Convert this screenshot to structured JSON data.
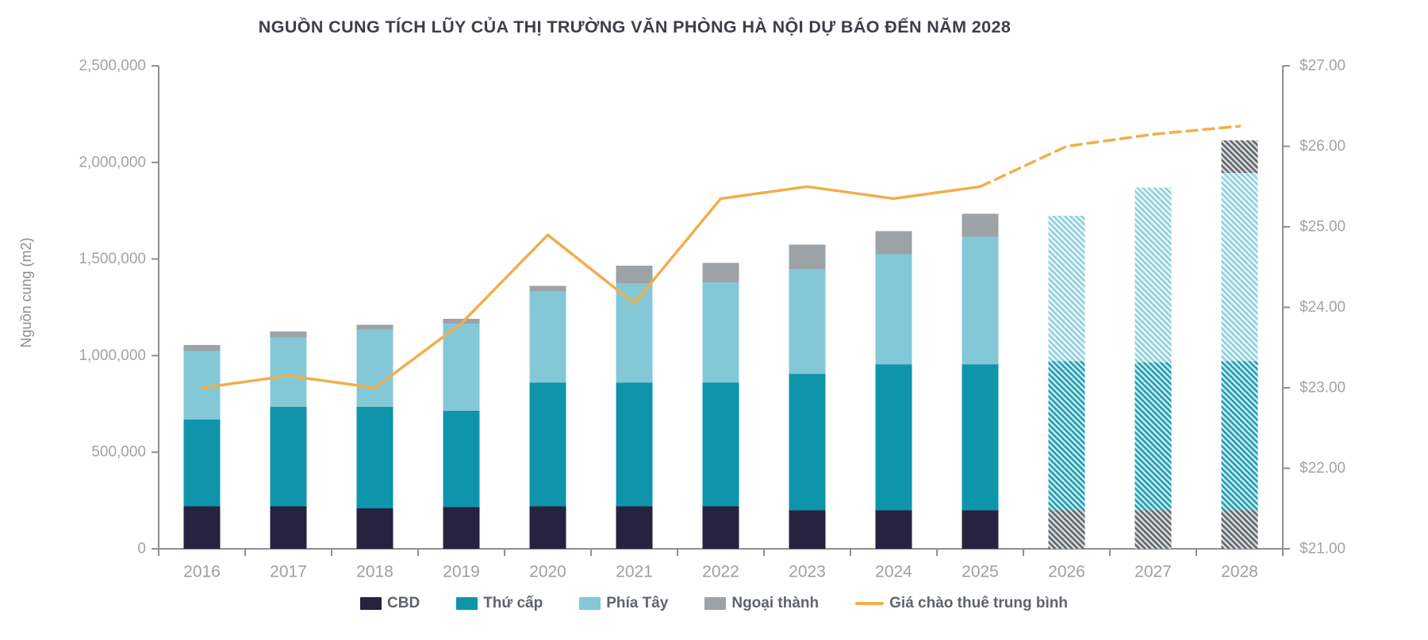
{
  "page": {
    "background": "#FFFFFF"
  },
  "chart_data": {
    "type": "stacked-bar + line (dual axis combo)",
    "title": "NGUỒN CUNG TÍCH LŨY CỦA THỊ TRƯỜNG VĂN PHÒNG HÀ NỘI DỰ BÁO ĐẾN NĂM 2028",
    "left_axis": {
      "label": "Nguồn cung (m2)",
      "min": 0,
      "max": 2500000,
      "tick_values": [
        0,
        500000,
        1000000,
        1500000,
        2000000,
        2500000
      ],
      "tick_labels": [
        "0",
        "500,000",
        "1,000,000",
        "1,500,000",
        "2,000,000",
        "2,500,000"
      ]
    },
    "right_axis": {
      "min": 21,
      "max": 27,
      "tick_values": [
        21,
        22,
        23,
        24,
        25,
        26,
        27
      ],
      "tick_labels": [
        "$21.00",
        "$22.00",
        "$23.00",
        "$24.00",
        "$25.00",
        "$26.00",
        "$27.00"
      ]
    },
    "categories": [
      "2016",
      "2017",
      "2018",
      "2019",
      "2020",
      "2021",
      "2022",
      "2023",
      "2024",
      "2025",
      "2026",
      "2027",
      "2028"
    ],
    "forecast_from_index": 10,
    "series": [
      {
        "key": "cbd",
        "name": "CBD",
        "color": "#262240",
        "values": [
          220000,
          220000,
          210000,
          215000,
          220000,
          220000,
          220000,
          200000,
          200000,
          200000,
          200000,
          200000,
          200000
        ]
      },
      {
        "key": "thu_cap",
        "name": "Thứ cấp",
        "color": "#0E95AB",
        "values": [
          450000,
          515000,
          525000,
          500000,
          640000,
          640000,
          640000,
          705000,
          755000,
          755000,
          770000,
          765000,
          770000
        ]
      },
      {
        "key": "phia_tay",
        "name": "Phía Tây",
        "color": "#84C8D8",
        "values": [
          355000,
          360000,
          400000,
          450000,
          475000,
          515000,
          520000,
          545000,
          570000,
          660000,
          755000,
          905000,
          975000
        ]
      },
      {
        "key": "ngoai_thanh",
        "name": "Ngoại thành",
        "color": "#9DA2A6",
        "values": [
          30000,
          30000,
          25000,
          25000,
          25000,
          90000,
          100000,
          125000,
          120000,
          120000,
          0,
          0,
          170000
        ]
      }
    ],
    "line_series": {
      "name": "Giá chào thuê trung bình",
      "color": "#EFAF4B",
      "values": [
        23.0,
        23.15,
        23.0,
        23.8,
        24.9,
        24.05,
        25.35,
        25.5,
        25.35,
        25.5,
        26.0,
        26.15,
        26.25
      ],
      "dashed_from_index": 9
    },
    "style_notes": {
      "forecast_bars_hatched": true,
      "forecast_cbd_rendered_as_gray_hatch": true,
      "axis_color": "#8C9196",
      "tick_label_color": "#A0A3A8",
      "year_label_color": "#9BA0A5"
    }
  }
}
